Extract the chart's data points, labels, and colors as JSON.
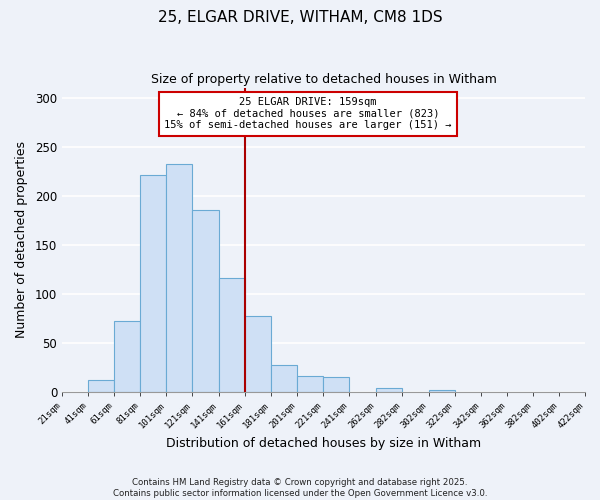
{
  "title": "25, ELGAR DRIVE, WITHAM, CM8 1DS",
  "subtitle": "Size of property relative to detached houses in Witham",
  "xlabel": "Distribution of detached houses by size in Witham",
  "ylabel": "Number of detached properties",
  "bar_color": "#cfe0f5",
  "bar_edge_color": "#6aaad4",
  "background_color": "#eef2f9",
  "grid_color": "#ffffff",
  "bin_lefts": [
    21,
    41,
    61,
    81,
    101,
    121,
    141,
    161,
    181,
    201,
    221,
    241,
    262,
    282,
    302,
    322,
    342,
    362,
    382,
    402
  ],
  "bin_widths": [
    20,
    20,
    20,
    20,
    20,
    20,
    20,
    20,
    20,
    20,
    20,
    21,
    20,
    20,
    20,
    20,
    20,
    20,
    20,
    20
  ],
  "values": [
    0,
    12,
    72,
    221,
    233,
    186,
    116,
    77,
    27,
    16,
    15,
    0,
    4,
    0,
    2,
    0,
    0,
    0,
    0,
    0
  ],
  "vline_x": 161,
  "vline_color": "#aa0000",
  "annotation_text": "25 ELGAR DRIVE: 159sqm\n← 84% of detached houses are smaller (823)\n15% of semi-detached houses are larger (151) →",
  "annotation_box_color": "#ffffff",
  "annotation_box_edge": "#cc0000",
  "ylim": [
    0,
    310
  ],
  "xlim": [
    21,
    422
  ],
  "yticks": [
    0,
    50,
    100,
    150,
    200,
    250,
    300
  ],
  "tick_labels": [
    "21sqm",
    "41sqm",
    "61sqm",
    "81sqm",
    "101sqm",
    "121sqm",
    "141sqm",
    "161sqm",
    "181sqm",
    "201sqm",
    "221sqm",
    "241sqm",
    "262sqm",
    "282sqm",
    "302sqm",
    "322sqm",
    "342sqm",
    "362sqm",
    "382sqm",
    "402sqm",
    "422sqm"
  ],
  "tick_positions": [
    21,
    41,
    61,
    81,
    101,
    121,
    141,
    161,
    181,
    201,
    221,
    241,
    262,
    282,
    302,
    322,
    342,
    362,
    382,
    402,
    422
  ],
  "footnote1": "Contains HM Land Registry data © Crown copyright and database right 2025.",
  "footnote2": "Contains public sector information licensed under the Open Government Licence v3.0."
}
